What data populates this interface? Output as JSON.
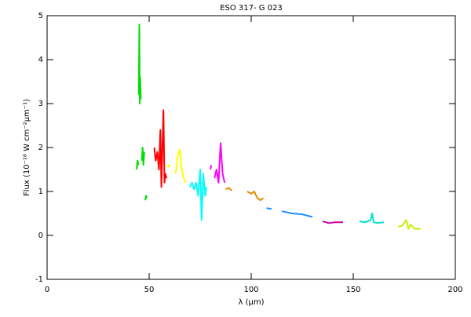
{
  "chart_data": {
    "type": "line",
    "title": "ESO 317- G 023",
    "x_label": "λ (μm)",
    "y_label": "Flux (10⁻¹⁸ W cm⁻²μm⁻¹)",
    "xlim": [
      0,
      200
    ],
    "xticks": [
      0,
      50,
      100,
      150,
      200
    ],
    "ylim": [
      -1,
      5
    ],
    "yticks": [
      -1,
      0,
      1,
      2,
      3,
      4,
      5
    ],
    "series": [
      {
        "color": "#00e000",
        "x": [
          43.8,
          44.3,
          44.8,
          44.85,
          44.9,
          45.2,
          45.4,
          45.6,
          45.9,
          46.1,
          46.4,
          46.8,
          47.2,
          47.6,
          47.8,
          48.1,
          48.5,
          48.9
        ],
        "values": [
          1.5,
          1.7,
          1.6,
          null,
          3.2,
          4.8,
          3.0,
          3.6,
          3.1,
          null,
          1.7,
          2.0,
          1.6,
          1.9,
          null,
          0.8,
          0.9,
          0.85
        ]
      },
      {
        "color": "#ff0000",
        "x": [
          52.5,
          53.2,
          54,
          54.8,
          55.5,
          56,
          56.5,
          57,
          57.5,
          58,
          58.5
        ],
        "values": [
          2.0,
          1.7,
          1.9,
          1.5,
          2.4,
          1.1,
          2.0,
          2.85,
          1.2,
          1.4,
          1.3
        ]
      },
      {
        "color": "#ffff00",
        "x": [
          59,
          59.7,
          60.3,
          61.5,
          63,
          64,
          65,
          66,
          67,
          68
        ],
        "values": [
          1.55,
          1.6,
          1.55,
          null,
          1.4,
          1.8,
          1.95,
          1.5,
          1.3,
          1.2
        ]
      },
      {
        "color": "#00ffff",
        "x": [
          70,
          71,
          72,
          73,
          74,
          75,
          75.7,
          76.5,
          77.5,
          78
        ],
        "values": [
          1.1,
          1.2,
          1.05,
          1.2,
          0.9,
          1.5,
          0.35,
          1.4,
          0.9,
          1.1
        ]
      },
      {
        "color": "#ff00ff",
        "x": [
          80,
          80.5,
          81,
          82,
          83,
          84,
          85,
          86,
          87
        ],
        "values": [
          1.5,
          1.6,
          null,
          1.3,
          1.5,
          1.2,
          2.1,
          1.4,
          1.2
        ]
      },
      {
        "color": "#e08c00",
        "x": [
          87.5,
          89,
          90.5,
          94,
          98,
          100,
          101.5,
          103,
          104.5,
          106
        ],
        "values": [
          1.05,
          1.08,
          1.02,
          null,
          1.0,
          0.95,
          1.0,
          0.85,
          0.8,
          0.85
        ]
      },
      {
        "color": "#1e90ff",
        "x": [
          107.5,
          110,
          112,
          115,
          120,
          125,
          130
        ],
        "values": [
          0.62,
          0.6,
          null,
          0.55,
          0.5,
          0.48,
          0.42
        ]
      },
      {
        "color": "#cc00aa",
        "x": [
          135,
          138,
          141,
          145
        ],
        "values": [
          0.32,
          0.28,
          0.3,
          0.3
        ]
      },
      {
        "color": "#00e0d0",
        "x": [
          153,
          156,
          158.5,
          159.3,
          160,
          162,
          165
        ],
        "values": [
          0.32,
          0.3,
          0.35,
          0.5,
          0.3,
          0.28,
          0.3
        ]
      },
      {
        "color": "#ccee00",
        "x": [
          172,
          174,
          176,
          177,
          178,
          180,
          183
        ],
        "values": [
          0.2,
          0.22,
          0.35,
          0.15,
          0.25,
          0.15,
          0.15
        ]
      }
    ]
  }
}
